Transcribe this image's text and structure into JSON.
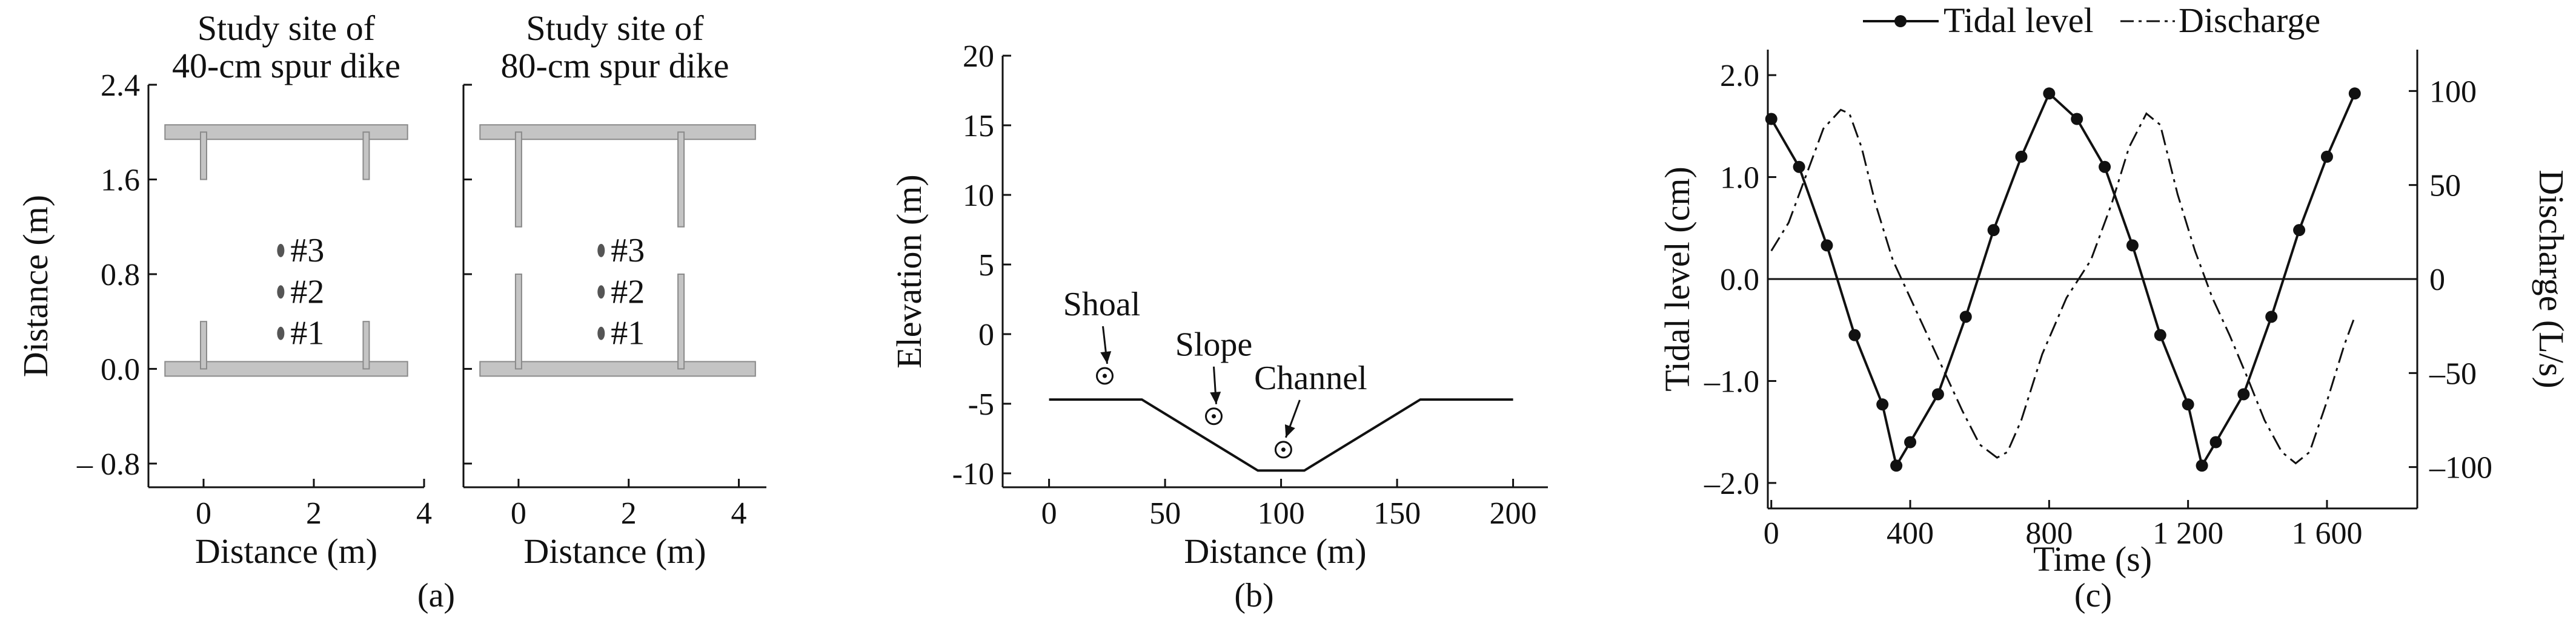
{
  "chart_data": [
    {
      "id": "a",
      "type": "diagram",
      "panel_label": "(a)",
      "colors": {
        "dike": "#c4c4c4",
        "dike_stroke": "#8a8a8a",
        "gauge": "#555555"
      },
      "subplots": [
        {
          "title_lines": [
            "Study site of",
            "40-cm spur dike"
          ],
          "xlabel": "Distance (m)",
          "ylabel": "Distance (m)",
          "xlim": [
            -1,
            4
          ],
          "ylim": [
            -1,
            2.4
          ],
          "xticks": [
            0,
            2,
            4
          ],
          "yticks": [
            -0.8,
            0.0,
            0.8,
            1.6,
            2.4
          ],
          "ytick_labels": [
            "– 0.8",
            "0.0",
            "0.8",
            "1.6",
            "2.4"
          ],
          "walls": [
            {
              "x0": -0.7,
              "x1": 3.7,
              "y": 2.0
            },
            {
              "x0": -0.7,
              "x1": 3.7,
              "y": 0.0
            }
          ],
          "spurs": [
            {
              "x": 0.0,
              "y0": 2.0,
              "y1": 1.6
            },
            {
              "x": 2.95,
              "y0": 2.0,
              "y1": 1.6
            },
            {
              "x": 0.0,
              "y0": 0.0,
              "y1": 0.4
            },
            {
              "x": 2.95,
              "y0": 0.0,
              "y1": 0.4
            }
          ],
          "gauges": [
            {
              "x": 1.4,
              "y": 1.0,
              "label": "#3"
            },
            {
              "x": 1.4,
              "y": 0.65,
              "label": "#2"
            },
            {
              "x": 1.4,
              "y": 0.3,
              "label": "#1"
            }
          ]
        },
        {
          "title_lines": [
            "Study site of",
            "80-cm spur dike"
          ],
          "xlabel": "Distance (m)",
          "xlim": [
            -1,
            4.5
          ],
          "xticks": [
            0,
            2,
            4
          ],
          "walls": [
            {
              "x0": -0.7,
              "x1": 4.3,
              "y": 2.0
            },
            {
              "x0": -0.7,
              "x1": 4.3,
              "y": 0.0
            }
          ],
          "spurs": [
            {
              "x": 0.0,
              "y0": 2.0,
              "y1": 1.2
            },
            {
              "x": 2.95,
              "y0": 2.0,
              "y1": 1.2
            },
            {
              "x": 0.0,
              "y0": 0.0,
              "y1": 0.8
            },
            {
              "x": 2.95,
              "y0": 0.0,
              "y1": 0.8
            }
          ],
          "gauges": [
            {
              "x": 1.5,
              "y": 1.0,
              "label": "#3"
            },
            {
              "x": 1.5,
              "y": 0.65,
              "label": "#2"
            },
            {
              "x": 1.5,
              "y": 0.3,
              "label": "#1"
            }
          ]
        }
      ]
    },
    {
      "id": "b",
      "type": "line",
      "panel_label": "(b)",
      "xlabel": "Distance (m)",
      "ylabel": "Elevation (m)",
      "xlim": [
        -20,
        215
      ],
      "ylim": [
        -11,
        20
      ],
      "xticks": [
        0,
        50,
        100,
        150,
        200
      ],
      "yticks": [
        -10,
        -5,
        0,
        5,
        10,
        15,
        20
      ],
      "profile": {
        "x": [
          0,
          40,
          90,
          110,
          160,
          200
        ],
        "y": [
          -4.7,
          -4.7,
          -9.8,
          -9.8,
          -4.7,
          -4.7
        ]
      },
      "stations": [
        {
          "label": "Shoal",
          "x": 24,
          "y": -3.0
        },
        {
          "label": "Slope",
          "x": 71,
          "y": -5.9
        },
        {
          "label": "Channel",
          "x": 101,
          "y": -8.3
        }
      ]
    },
    {
      "id": "c",
      "type": "line",
      "panel_label": "(c)",
      "xlabel": "Time (s)",
      "ylabel_left": "Tidal level (cm)",
      "ylabel_right": "Discharge (L/s)",
      "xlim": [
        -10,
        1860
      ],
      "ylim_left": [
        -2.25,
        2.25
      ],
      "ylim_right": [
        -122,
        122
      ],
      "xticks": [
        0,
        400,
        800,
        1200,
        1600
      ],
      "xtick_labels": [
        "0",
        "400",
        "800",
        "1 200",
        "1 600"
      ],
      "yticks_left": [
        -2.0,
        -1.0,
        0.0,
        1.0,
        2.0
      ],
      "yticks_left_labels": [
        "–2.0",
        "–1.0",
        "0.0",
        "1.0",
        "2.0"
      ],
      "yticks_right": [
        -100,
        -50,
        0,
        50,
        100
      ],
      "yticks_right_labels": [
        "–100",
        "–50",
        "0",
        "50",
        "100"
      ],
      "legend": {
        "position": "top",
        "entries": [
          "Tidal level",
          "Discharge"
        ]
      },
      "series": [
        {
          "name": "Tidal level",
          "axis": "left",
          "style": "solid-markers",
          "x": [
            0,
            80,
            160,
            240,
            320,
            360,
            400,
            480,
            560,
            640,
            720,
            800,
            880,
            960,
            1040,
            1120,
            1200,
            1240,
            1280,
            1360,
            1440,
            1520,
            1600,
            1680
          ],
          "y": [
            1.57,
            1.1,
            0.33,
            -0.55,
            -1.23,
            -1.83,
            -1.6,
            -1.13,
            -0.37,
            0.48,
            1.2,
            1.82,
            1.57,
            1.1,
            0.33,
            -0.55,
            -1.23,
            -1.83,
            -1.6,
            -1.13,
            -0.37,
            0.48,
            1.2,
            1.82
          ]
        },
        {
          "name": "Discharge",
          "axis": "right",
          "style": "dash-dot",
          "x": [
            0,
            50,
            100,
            150,
            200,
            225,
            260,
            300,
            350,
            400,
            450,
            500,
            550,
            600,
            650,
            680,
            720,
            780,
            850,
            920,
            980,
            1030,
            1080,
            1120,
            1170,
            1220,
            1270,
            1320,
            1370,
            1420,
            1470,
            1510,
            1550,
            1600,
            1650,
            1680
          ],
          "y": [
            15,
            30,
            55,
            80,
            90,
            88,
            70,
            40,
            10,
            -10,
            -30,
            -50,
            -70,
            -88,
            -95,
            -92,
            -75,
            -40,
            -10,
            10,
            40,
            70,
            88,
            82,
            45,
            15,
            -10,
            -30,
            -52,
            -75,
            -92,
            -98,
            -92,
            -65,
            -35,
            -20
          ]
        }
      ]
    }
  ]
}
